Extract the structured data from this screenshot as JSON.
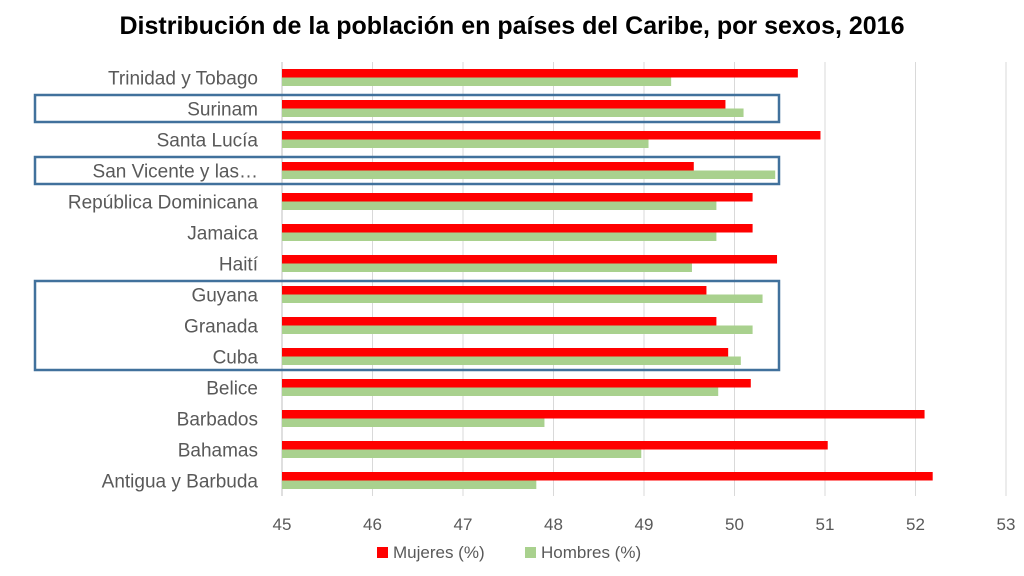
{
  "colors": {
    "mujeres": "#ff0000",
    "hombres": "#a9d18e",
    "gridline": "#d9d9d9",
    "highlight_box": "#41719c"
  },
  "chart_data": {
    "type": "bar",
    "orientation": "horizontal",
    "title": "Distribución de la población en países del Caribe, por sexos, 2016",
    "xlabel": "",
    "ylabel": "",
    "xlim": [
      45,
      53
    ],
    "xticks": [
      45,
      46,
      47,
      48,
      49,
      50,
      51,
      52,
      53
    ],
    "grid": true,
    "legend_position": "bottom",
    "categories": [
      "Trinidad y Tobago",
      "Surinam",
      "Santa Lucía",
      "San Vicente y las…",
      "República Dominicana",
      "Jamaica",
      "Haití",
      "Guyana",
      "Granada",
      "Cuba",
      "Belice",
      "Barbados",
      "Bahamas",
      "Antigua y Barbuda"
    ],
    "series": [
      {
        "name": "Mujeres (%)",
        "values": [
          50.7,
          49.9,
          50.95,
          49.55,
          50.2,
          50.2,
          50.47,
          49.69,
          49.8,
          49.93,
          50.18,
          52.1,
          51.03,
          52.19
        ]
      },
      {
        "name": "Hombres (%)",
        "values": [
          49.3,
          50.1,
          49.05,
          50.45,
          49.8,
          49.8,
          49.53,
          50.31,
          50.2,
          50.07,
          49.82,
          47.9,
          48.97,
          47.81
        ]
      }
    ],
    "highlighted_groups": [
      [
        "Surinam"
      ],
      [
        "San Vicente y las…"
      ],
      [
        "Guyana",
        "Granada",
        "Cuba"
      ]
    ]
  }
}
